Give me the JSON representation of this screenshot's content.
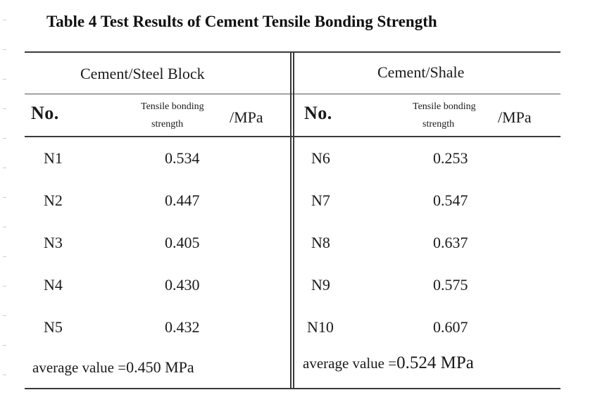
{
  "title": "Table 4 Test Results of Cement Tensile Bonding Strength",
  "groups": [
    {
      "name": "Cement/Steel Block",
      "col_no": "No.",
      "col_value_line1": "Tensile bonding",
      "col_value_line2": "strength",
      "col_unit": "/MPa",
      "rows": [
        {
          "no": "N1",
          "value": "0.534"
        },
        {
          "no": "N2",
          "value": "0.447"
        },
        {
          "no": "N3",
          "value": "0.405"
        },
        {
          "no": "N4",
          "value": "0.430"
        },
        {
          "no": "N5",
          "value": "0.432"
        }
      ],
      "average_label": "average value =",
      "average_value": "0.450 MPa"
    },
    {
      "name": "Cement/Shale",
      "col_no": "No.",
      "col_value_line1": "Tensile bonding",
      "col_value_line2": "strength",
      "col_unit": "/MPa",
      "rows": [
        {
          "no": "N6",
          "value": "0.253"
        },
        {
          "no": "N7",
          "value": "0.547"
        },
        {
          "no": "N8",
          "value": "0.637"
        },
        {
          "no": "N9",
          "value": "0.575"
        },
        {
          "no": "N10",
          "value": "0.607"
        }
      ],
      "average_label": "average value =",
      "average_value": "0.524 MPa"
    }
  ]
}
